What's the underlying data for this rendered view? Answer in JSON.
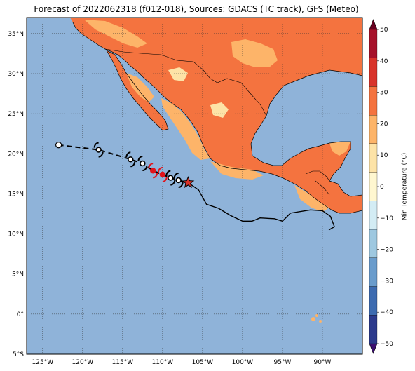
{
  "title": "Forecast of 2022062318 (f012-018), Sources: GDACS (TC track), GFS (Meteo)",
  "colors": {
    "ocean": "#8fb3d9",
    "land_hot": "#f4733f",
    "land_warm": "#fdb469",
    "land_mild": "#fde3a7",
    "coast": "#000000",
    "track": "#000000",
    "storm_red": "#e0141b",
    "star": "#d8332a"
  },
  "lat_labels": [
    "35°N",
    "30°N",
    "25°N",
    "20°N",
    "15°N",
    "10°N",
    "5°N",
    "0°",
    "5°S"
  ],
  "lon_labels": [
    "125°W",
    "120°W",
    "115°W",
    "110°W",
    "105°W",
    "100°W",
    "95°W",
    "90°W"
  ],
  "colorbar": {
    "label": "Min Temperature (°C)",
    "ticks": [
      "50",
      "40",
      "30",
      "20",
      "10",
      "0",
      "−10",
      "−20",
      "−30",
      "−40",
      "−50"
    ],
    "colors": [
      "#3b0f70",
      "#2c3a8c",
      "#3d6bb0",
      "#6a9ccc",
      "#9ec8e0",
      "#d3ecf4",
      "#fff7d0",
      "#fde3a7",
      "#fdb469",
      "#f4733f",
      "#d8332a",
      "#a6112a",
      "#67001f"
    ]
  },
  "track": {
    "past": [
      {
        "lon": -123.0,
        "lat": 21.1
      },
      {
        "lon": -118.0,
        "lat": 20.5
      }
    ],
    "forecast": [
      {
        "lon": -118.0,
        "lat": 20.5,
        "symbol": "hurricane",
        "color": "black"
      },
      {
        "lon": -114.0,
        "lat": 19.3,
        "symbol": "hurricane",
        "color": "black"
      },
      {
        "lon": -112.5,
        "lat": 18.8,
        "symbol": "hurricane",
        "color": "black"
      },
      {
        "lon": -111.2,
        "lat": 17.9,
        "symbol": "hurricane",
        "color": "red"
      },
      {
        "lon": -110.0,
        "lat": 17.4,
        "symbol": "hurricane",
        "color": "red"
      },
      {
        "lon": -109.0,
        "lat": 17.0,
        "symbol": "hurricane",
        "color": "black"
      },
      {
        "lon": -108.0,
        "lat": 16.7,
        "symbol": "hurricane",
        "color": "black"
      }
    ],
    "current": {
      "lon": -106.8,
      "lat": 16.4
    },
    "uncertainty": [
      {
        "lon": -106.8,
        "lat": 16.4
      },
      {
        "lon": -105.5,
        "lat": 15.5
      },
      {
        "lon": -104.5,
        "lat": 13.7
      },
      {
        "lon": -103.0,
        "lat": 13.2
      },
      {
        "lon": -101.5,
        "lat": 12.3
      },
      {
        "lon": -100.0,
        "lat": 11.6
      },
      {
        "lon": -98.8,
        "lat": 11.6
      },
      {
        "lon": -97.8,
        "lat": 12.0
      },
      {
        "lon": -96.0,
        "lat": 11.9
      },
      {
        "lon": -95.0,
        "lat": 11.6
      },
      {
        "lon": -94.5,
        "lat": 12.1
      },
      {
        "lon": -94.0,
        "lat": 12.6
      },
      {
        "lon": -91.5,
        "lat": 13.0
      },
      {
        "lon": -90.0,
        "lat": 12.9
      },
      {
        "lon": -89.0,
        "lat": 12.2
      },
      {
        "lon": -88.5,
        "lat": 10.9
      },
      {
        "lon": -89.2,
        "lat": 10.5
      }
    ]
  }
}
